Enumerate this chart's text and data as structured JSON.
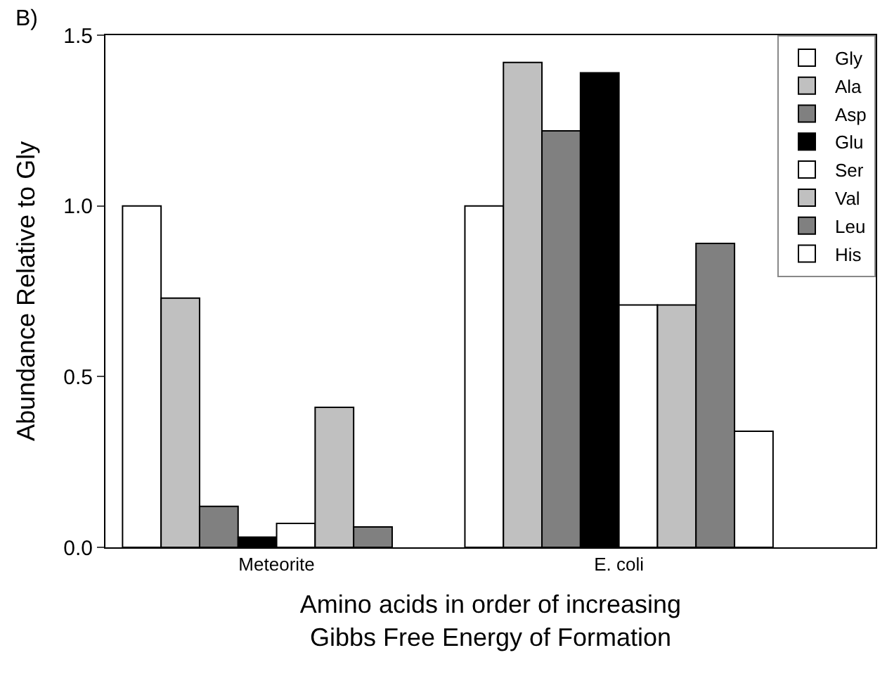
{
  "chart_data": {
    "type": "bar",
    "categories": [
      "Meteorite",
      "E. coli"
    ],
    "xlabel": "Amino acids in order of increasing\nGibbs Free Energy of Formation",
    "ylabel": "Abundance Relative to Gly",
    "annotations": [
      "B)"
    ],
    "ylim": [
      0,
      1.5
    ],
    "yticks": [
      {
        "value": 0,
        "label": "0.0"
      },
      {
        "value": 0.5,
        "label": "0.5"
      },
      {
        "value": 1,
        "label": "1.0"
      },
      {
        "value": 1.5,
        "label": "1.5"
      }
    ],
    "legend": "top right",
    "series": [
      {
        "name": "Gly",
        "color": "#ffffff",
        "values": [
          1.0,
          1.0
        ]
      },
      {
        "name": "Ala",
        "color": "#c0c0c0",
        "values": [
          0.73,
          1.42
        ]
      },
      {
        "name": "Asp",
        "color": "#808080",
        "values": [
          0.12,
          1.22
        ]
      },
      {
        "name": "Glu",
        "color": "#000000",
        "values": [
          0.03,
          1.39
        ]
      },
      {
        "name": "Ser",
        "color": "#ffffff",
        "values": [
          0.07,
          0.71
        ]
      },
      {
        "name": "Val",
        "color": "#c0c0c0",
        "values": [
          0.41,
          0.71
        ]
      },
      {
        "name": "Leu",
        "color": "#808080",
        "values": [
          0.06,
          0.89
        ]
      },
      {
        "name": "His",
        "color": "#ffffff",
        "values": [
          null,
          0.34
        ]
      }
    ]
  }
}
